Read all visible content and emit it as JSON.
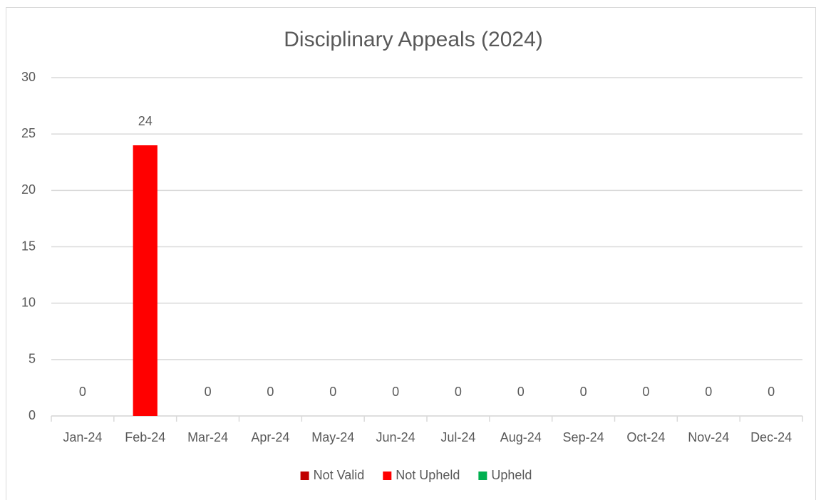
{
  "chart_data": {
    "type": "stacked_bar",
    "title": "Disciplinary Appeals (2024)",
    "categories": [
      "Jan-24",
      "Feb-24",
      "Mar-24",
      "Apr-24",
      "May-24",
      "Jun-24",
      "Jul-24",
      "Aug-24",
      "Sep-24",
      "Oct-24",
      "Nov-24",
      "Dec-24"
    ],
    "series": [
      {
        "name": "Not Valid",
        "color": "#c00000",
        "values": [
          0,
          0,
          0,
          0,
          0,
          0,
          0,
          0,
          0,
          0,
          0,
          0
        ]
      },
      {
        "name": "Not Upheld",
        "color": "#ff0000",
        "values": [
          0,
          24,
          0,
          0,
          0,
          0,
          0,
          0,
          0,
          0,
          0,
          0
        ]
      },
      {
        "name": "Upheld",
        "color": "#00b050",
        "values": [
          0,
          0,
          0,
          0,
          0,
          0,
          0,
          0,
          0,
          0,
          0,
          0
        ]
      }
    ],
    "labeled_series": 1,
    "ylim": [
      0,
      30
    ],
    "yticks": [
      0,
      5,
      10,
      15,
      20,
      25,
      30
    ],
    "grid": true,
    "legend": "bottom"
  }
}
